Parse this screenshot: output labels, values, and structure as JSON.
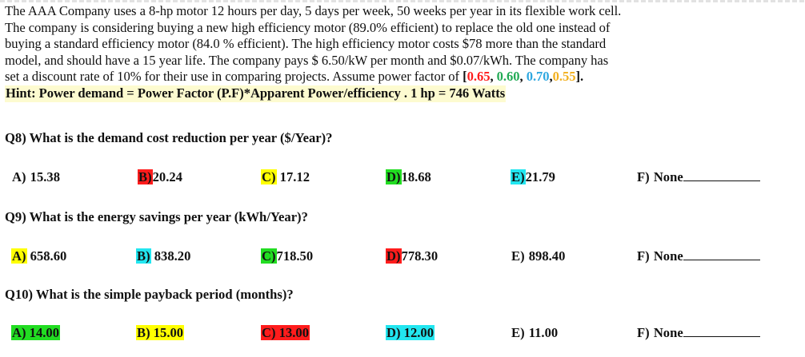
{
  "problem": {
    "lines": [
      "The AAA Company uses a 8-hp motor 12 hours per day, 5 days per week, 50 weeks per year in its flexible work cell.",
      "The company is considering buying a new high efficiency motor (89.0% efficient) to replace the old one instead of",
      "buying a standard efficiency motor (84.0 % efficient). The high efficiency motor costs $78 more than the standard",
      "model, and should have a 15 year life. The company pays $ 6.50/kW per month and $0.07/kWh. The company has",
      "set a discount rate of 10% for their use in comparing projects. Assume power factor of "
    ],
    "power_factors": {
      "open": "[",
      "v1": "0.65",
      "sep1": ", ",
      "v2": "0.60",
      "sep2": ", ",
      "v3": "0.70",
      "sep3": ",",
      "v4": "0.55",
      "close": "]."
    },
    "hint": "Hint: Power demand = Power Factor (P.F)*Apparent Power/efficiency . 1 hp = 746 Watts"
  },
  "colors": {
    "red": "#ff1c1c",
    "green": "#22aa55",
    "blue": "#2ea7e0",
    "orange": "#f2b01e",
    "highlight_yellow": "#ffff00",
    "highlight_red": "#ff1c1c",
    "highlight_green": "#22dd22",
    "highlight_cyan": "#22e6f0"
  },
  "questions": [
    {
      "text": "Q8) What is the demand cost reduction per year ($/Year)?",
      "options": [
        {
          "letter": "A)",
          "value": " 15.38",
          "highlight": "none"
        },
        {
          "letter": "B)",
          "value": "20.24",
          "highlight": "red-letter"
        },
        {
          "letter": "C)",
          "value": " 17.12",
          "highlight": "yellow-letter"
        },
        {
          "letter": "D)",
          "value": "18.68",
          "highlight": "green-letter"
        },
        {
          "letter": "E)",
          "value": "21.79",
          "highlight": "cyan-letter"
        },
        {
          "letter": "F)",
          "value": " None",
          "highlight": "none",
          "blank": true
        }
      ]
    },
    {
      "text": "Q9) What is the energy savings per year (kWh/Year)?",
      "options": [
        {
          "letter": "A)",
          "value": " 658.60",
          "highlight": "yellow-letter"
        },
        {
          "letter": "B)",
          "value": " 838.20",
          "highlight": "cyan-letter"
        },
        {
          "letter": "C)",
          "value": "718.50",
          "highlight": "green-letter"
        },
        {
          "letter": "D)",
          "value": "778.30",
          "highlight": "red-letter"
        },
        {
          "letter": "E)",
          "value": " 898.40",
          "highlight": "none"
        },
        {
          "letter": "F)",
          "value": " None",
          "highlight": "none",
          "blank": true
        }
      ]
    },
    {
      "text": "Q10) What is the simple payback period (months)?",
      "options": [
        {
          "letter": "A)",
          "value": " 14.00",
          "highlight": "green-full"
        },
        {
          "letter": "B)",
          "value": " 15.00",
          "highlight": "yellow-full"
        },
        {
          "letter": "C)",
          "value": " 13.00",
          "highlight": "red-full"
        },
        {
          "letter": "D)",
          "value": " 12.00",
          "highlight": "cyan-full"
        },
        {
          "letter": "E)",
          "value": " 11.00",
          "highlight": "none"
        },
        {
          "letter": "F)",
          "value": " None",
          "highlight": "none",
          "blank": true
        }
      ]
    }
  ]
}
